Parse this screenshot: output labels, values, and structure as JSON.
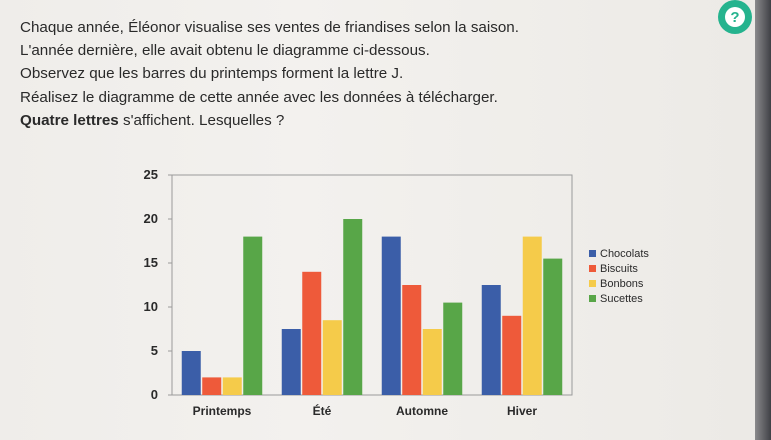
{
  "instructions": {
    "line1": "Chaque année, Éléonor visualise ses ventes de friandises selon la saison.",
    "line2": "L'année dernière, elle avait obtenu le diagramme ci-dessous.",
    "line3": "Observez que les barres du printemps forment la lettre J.",
    "line4": "Réalisez le diagramme de cette année avec les données à télécharger.",
    "line5_bold": "Quatre lettres",
    "line5_rest": " s'affichent. Lesquelles ?"
  },
  "help_button": {
    "label": "?",
    "icon": "question-icon",
    "color": "#25b38e"
  },
  "chart_data": {
    "type": "bar",
    "categories": [
      "Printemps",
      "Été",
      "Automne",
      "Hiver"
    ],
    "series": [
      {
        "name": "Chocolats",
        "color": "#3b5ea8",
        "values": [
          5,
          7.5,
          18,
          12.5
        ]
      },
      {
        "name": "Biscuits",
        "color": "#ee5a3a",
        "values": [
          2,
          14,
          12.5,
          9
        ]
      },
      {
        "name": "Bonbons",
        "color": "#f5cb4a",
        "values": [
          2,
          8.5,
          7.5,
          18
        ]
      },
      {
        "name": "Sucettes",
        "color": "#58a648",
        "values": [
          18,
          20,
          10.5,
          15.5
        ]
      }
    ],
    "yticks": [
      0,
      5,
      10,
      15,
      20,
      25
    ],
    "ylim": [
      0,
      25
    ],
    "grid": false,
    "legend": "right"
  }
}
